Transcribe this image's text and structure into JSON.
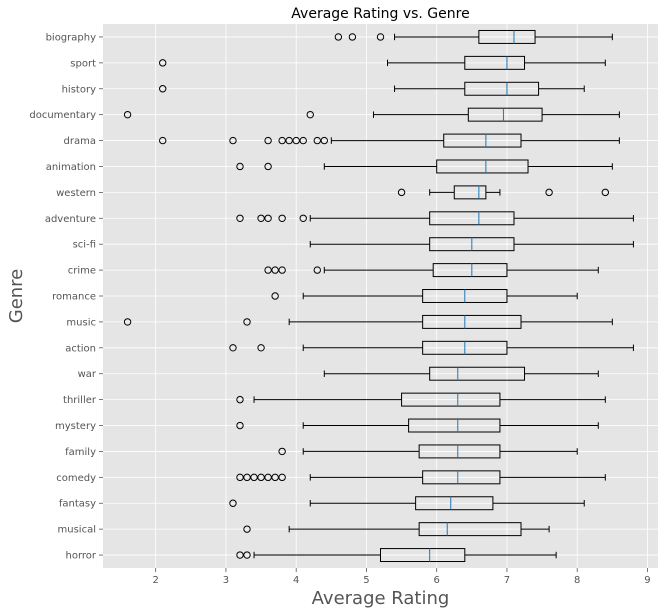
{
  "chart_data": {
    "type": "boxplot",
    "orientation": "horizontal",
    "title": "Average Rating vs. Genre",
    "xlabel": "Average Rating",
    "ylabel": "Genre",
    "xlim": [
      1.25,
      9.15
    ],
    "xticks": [
      2,
      3,
      4,
      5,
      6,
      7,
      8,
      9
    ],
    "grid": true,
    "style": "ggplot",
    "colors": {
      "background": "#e5e5e5",
      "grid": "#ffffff",
      "box": "#000000",
      "median": "#1f77b4",
      "frame": "#ffffff"
    },
    "categories": [
      "horror",
      "musical",
      "fantasy",
      "comedy",
      "family",
      "mystery",
      "thriller",
      "war",
      "action",
      "music",
      "romance",
      "crime",
      "sci-fi",
      "adventure",
      "western",
      "animation",
      "drama",
      "documentary",
      "history",
      "sport",
      "biography"
    ],
    "boxes": [
      {
        "label": "horror",
        "whislo": 3.4,
        "q1": 5.2,
        "med": 5.9,
        "q3": 6.4,
        "whishi": 7.7,
        "fliers": [
          3.2,
          3.3
        ]
      },
      {
        "label": "musical",
        "whislo": 3.9,
        "q1": 5.75,
        "med": 6.15,
        "q3": 7.2,
        "whishi": 7.6,
        "fliers": [
          3.3
        ]
      },
      {
        "label": "fantasy",
        "whislo": 4.2,
        "q1": 5.7,
        "med": 6.2,
        "q3": 6.8,
        "whishi": 8.1,
        "fliers": [
          3.1
        ]
      },
      {
        "label": "comedy",
        "whislo": 4.2,
        "q1": 5.8,
        "med": 6.3,
        "q3": 6.9,
        "whishi": 8.4,
        "fliers": [
          3.2,
          3.3,
          3.4,
          3.5,
          3.6,
          3.7,
          3.8
        ]
      },
      {
        "label": "family",
        "whislo": 4.1,
        "q1": 5.75,
        "med": 6.3,
        "q3": 6.9,
        "whishi": 8.0,
        "fliers": [
          3.8
        ]
      },
      {
        "label": "mystery",
        "whislo": 4.1,
        "q1": 5.6,
        "med": 6.3,
        "q3": 6.9,
        "whishi": 8.3,
        "fliers": [
          3.2
        ]
      },
      {
        "label": "thriller",
        "whislo": 3.4,
        "q1": 5.5,
        "med": 6.3,
        "q3": 6.9,
        "whishi": 8.4,
        "fliers": [
          3.2
        ]
      },
      {
        "label": "war",
        "whislo": 4.4,
        "q1": 5.9,
        "med": 6.3,
        "q3": 7.25,
        "whishi": 8.3,
        "fliers": []
      },
      {
        "label": "action",
        "whislo": 4.1,
        "q1": 5.8,
        "med": 6.4,
        "q3": 7.0,
        "whishi": 8.8,
        "fliers": [
          3.1,
          3.5
        ]
      },
      {
        "label": "music",
        "whislo": 3.9,
        "q1": 5.8,
        "med": 6.4,
        "q3": 7.2,
        "whishi": 8.5,
        "fliers": [
          1.6,
          3.3
        ]
      },
      {
        "label": "romance",
        "whislo": 4.1,
        "q1": 5.8,
        "med": 6.4,
        "q3": 7.0,
        "whishi": 8.0,
        "fliers": [
          3.7
        ]
      },
      {
        "label": "crime",
        "whislo": 4.4,
        "q1": 5.95,
        "med": 6.5,
        "q3": 7.0,
        "whishi": 8.3,
        "fliers": [
          3.6,
          3.7,
          3.8,
          4.3
        ]
      },
      {
        "label": "sci-fi",
        "whislo": 4.2,
        "q1": 5.9,
        "med": 6.5,
        "q3": 7.1,
        "whishi": 8.8,
        "fliers": []
      },
      {
        "label": "adventure",
        "whislo": 4.2,
        "q1": 5.9,
        "med": 6.6,
        "q3": 7.1,
        "whishi": 8.8,
        "fliers": [
          3.2,
          3.5,
          3.6,
          3.8,
          4.1
        ]
      },
      {
        "label": "western",
        "whislo": 5.9,
        "q1": 6.25,
        "med": 6.6,
        "q3": 6.7,
        "whishi": 6.9,
        "fliers": [
          5.5,
          7.6,
          8.4
        ]
      },
      {
        "label": "animation",
        "whislo": 4.4,
        "q1": 6.0,
        "med": 6.7,
        "q3": 7.3,
        "whishi": 8.5,
        "fliers": [
          3.2,
          3.6
        ]
      },
      {
        "label": "drama",
        "whislo": 4.5,
        "q1": 6.1,
        "med": 6.7,
        "q3": 7.2,
        "whishi": 8.6,
        "fliers": [
          2.1,
          3.1,
          3.6,
          3.8,
          3.9,
          4.0,
          4.1,
          4.3,
          4.4
        ]
      },
      {
        "label": "documentary",
        "whislo": 5.1,
        "q1": 6.45,
        "med": 6.95,
        "q3": 7.5,
        "whishi": 8.6,
        "fliers": [
          1.6,
          4.2
        ]
      },
      {
        "label": "history",
        "whislo": 5.4,
        "q1": 6.4,
        "med": 7.0,
        "q3": 7.45,
        "whishi": 8.1,
        "fliers": [
          2.1
        ]
      },
      {
        "label": "sport",
        "whislo": 5.3,
        "q1": 6.4,
        "med": 7.0,
        "q3": 7.25,
        "whishi": 8.4,
        "fliers": [
          2.1
        ]
      },
      {
        "label": "biography",
        "whislo": 5.4,
        "q1": 6.6,
        "med": 7.1,
        "q3": 7.4,
        "whishi": 8.5,
        "fliers": [
          4.6,
          4.8,
          5.2
        ]
      }
    ]
  }
}
